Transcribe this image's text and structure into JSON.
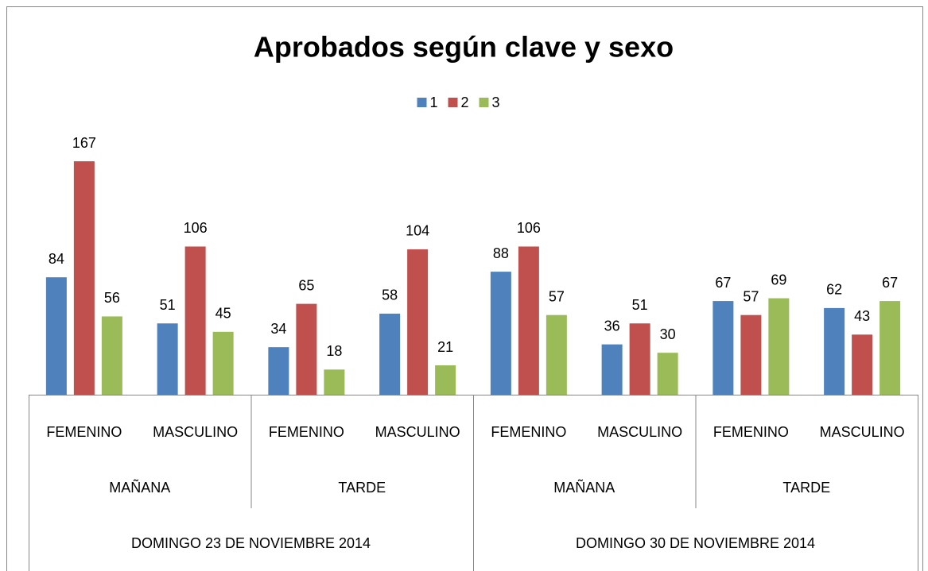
{
  "chart_data": {
    "type": "bar",
    "title": "Aprobados según clave y sexo",
    "categories": [
      "FEMENINO",
      "MASCULINO",
      "FEMENINO",
      "MASCULINO",
      "FEMENINO",
      "MASCULINO",
      "FEMENINO",
      "MASCULINO"
    ],
    "subgroups": [
      "MAÑANA",
      "TARDE",
      "MAÑANA",
      "TARDE"
    ],
    "groups": [
      "DOMINGO 23 DE NOVIEMBRE 2014",
      "DOMINGO 30 DE NOVIEMBRE 2014"
    ],
    "series": [
      {
        "name": "1",
        "color": "#4f81bd",
        "values": [
          84,
          51,
          34,
          58,
          88,
          36,
          67,
          62
        ]
      },
      {
        "name": "2",
        "color": "#c0504d",
        "values": [
          167,
          106,
          65,
          104,
          106,
          51,
          57,
          43
        ]
      },
      {
        "name": "3",
        "color": "#9bbb59",
        "values": [
          56,
          45,
          18,
          21,
          57,
          30,
          69,
          67
        ]
      }
    ],
    "legend": "top",
    "data_labels": true
  }
}
